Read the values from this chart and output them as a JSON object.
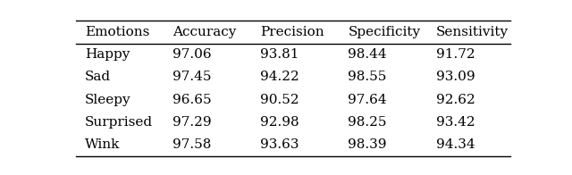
{
  "columns": [
    "Emotions",
    "Accuracy",
    "Precision",
    "Specificity",
    "Sensitivity"
  ],
  "rows": [
    [
      "Happy",
      "97.06",
      "93.81",
      "98.44",
      "91.72"
    ],
    [
      "Sad",
      "97.45",
      "94.22",
      "98.55",
      "93.09"
    ],
    [
      "Sleepy",
      "96.65",
      "90.52",
      "97.64",
      "92.62"
    ],
    [
      "Surprised",
      "97.29",
      "92.98",
      "98.25",
      "93.42"
    ],
    [
      "Wink",
      "97.58",
      "93.63",
      "98.39",
      "94.34"
    ]
  ],
  "figsize": [
    6.4,
    1.96
  ],
  "dpi": 100,
  "background_color": "#ffffff",
  "font_size": 11
}
